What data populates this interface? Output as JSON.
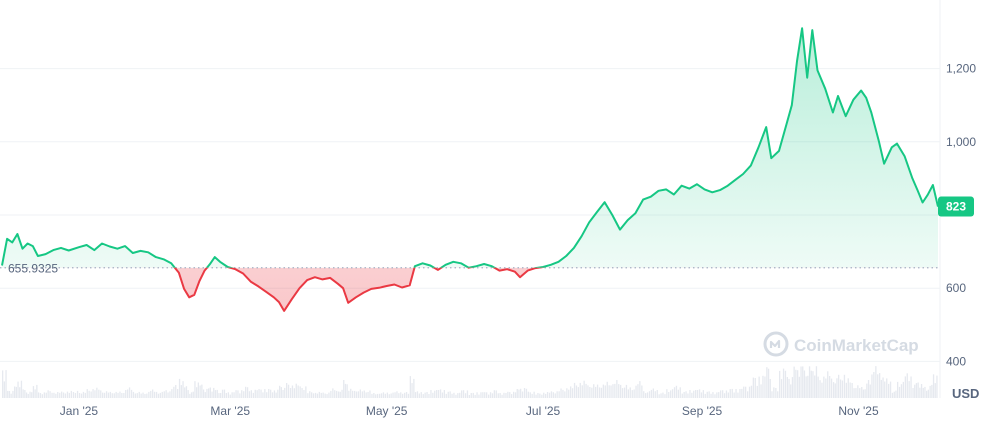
{
  "chart_data": {
    "type": "area",
    "currency_label": "USD",
    "reference_value": 655.9325,
    "reference_label": "655.9325",
    "current_value_label": "823",
    "ylim": [
      300,
      1360
    ],
    "y_ticks": [
      400,
      600,
      1000,
      1200
    ],
    "y_tick_labels": [
      "400",
      "600",
      "1,000",
      "1,200"
    ],
    "y_grid": [
      400,
      600,
      800,
      1000,
      1200
    ],
    "x_ticks": [
      "Jan '25",
      "Mar '25",
      "May '25",
      "Jul '25",
      "Sep '25",
      "Nov '25"
    ],
    "x_tick_dates": [
      "2025-01-01",
      "2025-03-01",
      "2025-05-01",
      "2025-07-01",
      "2025-09-01",
      "2025-11-01"
    ],
    "x_range": [
      "2024-12-02",
      "2025-12-02"
    ],
    "grid": true,
    "colors": {
      "up": "#16c784",
      "down": "#ea3943",
      "up_fill": "#16c784",
      "down_fill": "#ea3943"
    },
    "series": [
      {
        "points": [
          [
            "2024-12-02",
            662
          ],
          [
            "2024-12-04",
            735
          ],
          [
            "2024-12-06",
            725
          ],
          [
            "2024-12-08",
            748
          ],
          [
            "2024-12-10",
            708
          ],
          [
            "2024-12-12",
            722
          ],
          [
            "2024-12-14",
            715
          ],
          [
            "2024-12-16",
            688
          ],
          [
            "2024-12-19",
            693
          ],
          [
            "2024-12-22",
            704
          ],
          [
            "2024-12-25",
            710
          ],
          [
            "2024-12-28",
            703
          ],
          [
            "2025-01-01",
            712
          ],
          [
            "2025-01-04",
            718
          ],
          [
            "2025-01-07",
            704
          ],
          [
            "2025-01-10",
            722
          ],
          [
            "2025-01-13",
            714
          ],
          [
            "2025-01-16",
            708
          ],
          [
            "2025-01-19",
            715
          ],
          [
            "2025-01-22",
            696
          ],
          [
            "2025-01-25",
            702
          ],
          [
            "2025-01-28",
            698
          ],
          [
            "2025-01-31",
            685
          ],
          [
            "2025-02-03",
            679
          ],
          [
            "2025-02-06",
            668
          ],
          [
            "2025-02-09",
            642
          ],
          [
            "2025-02-11",
            598
          ],
          [
            "2025-02-13",
            575
          ],
          [
            "2025-02-15",
            582
          ],
          [
            "2025-02-17",
            620
          ],
          [
            "2025-02-19",
            648
          ],
          [
            "2025-02-21",
            665
          ],
          [
            "2025-02-23",
            685
          ],
          [
            "2025-02-25",
            672
          ],
          [
            "2025-02-28",
            658
          ],
          [
            "2025-03-03",
            652
          ],
          [
            "2025-03-06",
            640
          ],
          [
            "2025-03-09",
            618
          ],
          [
            "2025-03-12",
            605
          ],
          [
            "2025-03-15",
            590
          ],
          [
            "2025-03-18",
            575
          ],
          [
            "2025-03-20",
            562
          ],
          [
            "2025-03-22",
            538
          ],
          [
            "2025-03-25",
            570
          ],
          [
            "2025-03-28",
            600
          ],
          [
            "2025-03-31",
            622
          ],
          [
            "2025-04-03",
            630
          ],
          [
            "2025-04-06",
            624
          ],
          [
            "2025-04-09",
            628
          ],
          [
            "2025-04-12",
            612
          ],
          [
            "2025-04-14",
            600
          ],
          [
            "2025-04-16",
            560
          ],
          [
            "2025-04-19",
            575
          ],
          [
            "2025-04-22",
            588
          ],
          [
            "2025-04-25",
            598
          ],
          [
            "2025-04-28",
            601
          ],
          [
            "2025-05-01",
            606
          ],
          [
            "2025-05-04",
            610
          ],
          [
            "2025-05-07",
            602
          ],
          [
            "2025-05-10",
            608
          ],
          [
            "2025-05-12",
            660
          ],
          [
            "2025-05-15",
            668
          ],
          [
            "2025-05-18",
            662
          ],
          [
            "2025-05-21",
            650
          ],
          [
            "2025-05-24",
            664
          ],
          [
            "2025-05-27",
            672
          ],
          [
            "2025-05-30",
            668
          ],
          [
            "2025-06-02",
            656
          ],
          [
            "2025-06-05",
            660
          ],
          [
            "2025-06-08",
            666
          ],
          [
            "2025-06-11",
            660
          ],
          [
            "2025-06-14",
            648
          ],
          [
            "2025-06-17",
            652
          ],
          [
            "2025-06-20",
            645
          ],
          [
            "2025-06-22",
            630
          ],
          [
            "2025-06-25",
            648
          ],
          [
            "2025-06-28",
            655
          ],
          [
            "2025-07-01",
            658
          ],
          [
            "2025-07-04",
            664
          ],
          [
            "2025-07-07",
            672
          ],
          [
            "2025-07-10",
            688
          ],
          [
            "2025-07-13",
            710
          ],
          [
            "2025-07-16",
            742
          ],
          [
            "2025-07-19",
            780
          ],
          [
            "2025-07-22",
            808
          ],
          [
            "2025-07-25",
            835
          ],
          [
            "2025-07-28",
            800
          ],
          [
            "2025-07-31",
            760
          ],
          [
            "2025-08-03",
            786
          ],
          [
            "2025-08-06",
            805
          ],
          [
            "2025-08-09",
            842
          ],
          [
            "2025-08-12",
            850
          ],
          [
            "2025-08-15",
            866
          ],
          [
            "2025-08-18",
            870
          ],
          [
            "2025-08-21",
            856
          ],
          [
            "2025-08-24",
            880
          ],
          [
            "2025-08-27",
            872
          ],
          [
            "2025-08-30",
            884
          ],
          [
            "2025-09-02",
            870
          ],
          [
            "2025-09-05",
            862
          ],
          [
            "2025-09-08",
            868
          ],
          [
            "2025-09-11",
            880
          ],
          [
            "2025-09-14",
            896
          ],
          [
            "2025-09-17",
            912
          ],
          [
            "2025-09-20",
            935
          ],
          [
            "2025-09-23",
            985
          ],
          [
            "2025-09-26",
            1040
          ],
          [
            "2025-09-28",
            955
          ],
          [
            "2025-10-01",
            975
          ],
          [
            "2025-10-04",
            1050
          ],
          [
            "2025-10-06",
            1100
          ],
          [
            "2025-10-08",
            1220
          ],
          [
            "2025-10-10",
            1310
          ],
          [
            "2025-10-12",
            1175
          ],
          [
            "2025-10-14",
            1305
          ],
          [
            "2025-10-16",
            1195
          ],
          [
            "2025-10-19",
            1145
          ],
          [
            "2025-10-22",
            1080
          ],
          [
            "2025-10-24",
            1125
          ],
          [
            "2025-10-27",
            1070
          ],
          [
            "2025-10-30",
            1115
          ],
          [
            "2025-11-02",
            1140
          ],
          [
            "2025-11-04",
            1120
          ],
          [
            "2025-11-06",
            1080
          ],
          [
            "2025-11-09",
            1000
          ],
          [
            "2025-11-11",
            940
          ],
          [
            "2025-11-14",
            985
          ],
          [
            "2025-11-16",
            995
          ],
          [
            "2025-11-19",
            960
          ],
          [
            "2025-11-22",
            900
          ],
          [
            "2025-11-24",
            868
          ],
          [
            "2025-11-26",
            834
          ],
          [
            "2025-11-28",
            855
          ],
          [
            "2025-11-30",
            882
          ],
          [
            "2025-12-02",
            823
          ]
        ]
      }
    ]
  },
  "watermark": {
    "text": "CoinMarketCap",
    "icon": "coinmarketcap-logo-icon"
  }
}
